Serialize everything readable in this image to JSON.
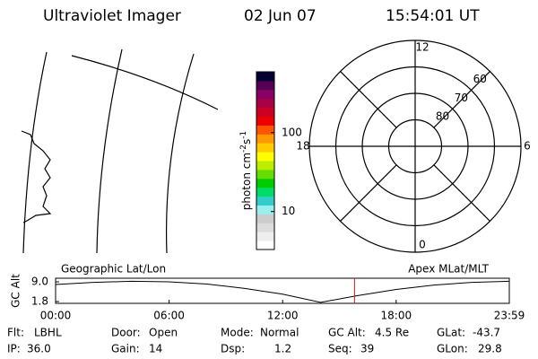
{
  "header": {
    "title": "Ultraviolet Imager",
    "date": "02 Jun 07",
    "time": "15:54:01 UT"
  },
  "colorbar": {
    "unit": [
      "photon cm",
      "-2",
      "s",
      "-1"
    ],
    "log": true,
    "lim": [
      3.3,
      590
    ],
    "ticks": [
      10,
      100
    ]
  },
  "polar": {
    "lat_lim": [
      90,
      50
    ],
    "lat_rings": [
      80,
      70,
      60
    ],
    "mlt_labels": [
      12,
      6,
      18,
      0
    ]
  },
  "altitude_plot": {
    "ylabel": "GC Alt",
    "left_label": "Geographic Lat/Lon",
    "right_label": "Apex MLat/MLT",
    "xlim": [
      0,
      23.98
    ],
    "ylim": [
      1.8,
      9.0
    ],
    "xticks": [
      {
        "value": 0,
        "label": "00:00"
      },
      {
        "value": 6,
        "label": "06:00"
      },
      {
        "value": 12,
        "label": "12:00"
      },
      {
        "value": 18,
        "label": "18:00"
      },
      {
        "value": 23.98,
        "label": "23:59"
      }
    ],
    "yticks": [
      {
        "value": 9.0,
        "label": "9.0"
      },
      {
        "value": 1.8,
        "label": "1.8"
      }
    ],
    "x": [
      0,
      2,
      4,
      6,
      8,
      10,
      12,
      14,
      16,
      18,
      20,
      22,
      23.98
    ],
    "values": [
      8.0,
      8.8,
      9.2,
      9.0,
      8.2,
      6.6,
      4.5,
      1.5,
      4.0,
      6.2,
      7.8,
      8.8,
      9.2
    ],
    "current_hour": 15.8,
    "color": "#000000",
    "marker_color": "#cc2222"
  },
  "footer": {
    "rows": [
      [
        {
          "label": "Flt:",
          "value": "LBHL"
        },
        {
          "label": "Door:",
          "value": "Open"
        },
        {
          "label": "Mode:",
          "value": "Normal"
        },
        {
          "label": "GC Alt:",
          "value": "4.5 Re"
        },
        {
          "label": "GLat:",
          "value": "-43.7"
        }
      ],
      [
        {
          "label": "IP:",
          "value": "36.0"
        },
        {
          "label": "Gain:",
          "value": "14"
        },
        {
          "label": "Dsp:",
          "value": "1.2"
        },
        {
          "label": "Seq:",
          "value": "39"
        },
        {
          "label": "GLon:",
          "value": "29.8"
        }
      ]
    ]
  }
}
